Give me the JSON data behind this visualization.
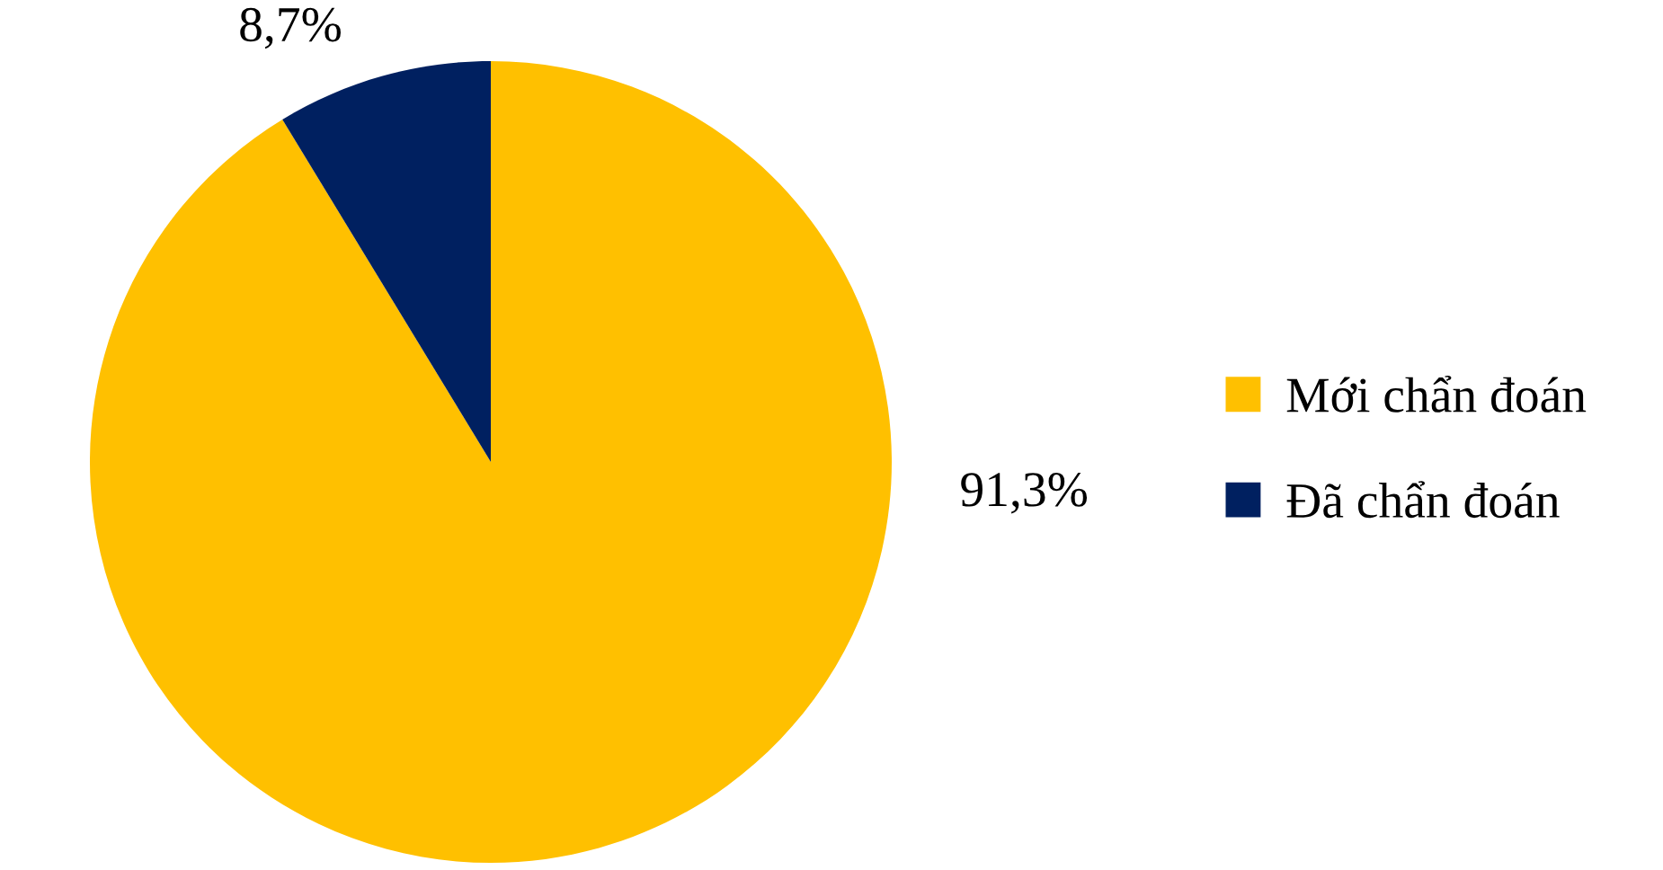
{
  "chart_data": {
    "type": "pie",
    "categories": [
      "Mới chẩn đoán",
      "Đã chẩn đoán"
    ],
    "values": [
      91.3,
      8.7
    ],
    "colors": [
      "#ffc000",
      "#002060"
    ],
    "value_labels": [
      "91,3%",
      "8,7%"
    ],
    "legend": "right"
  }
}
